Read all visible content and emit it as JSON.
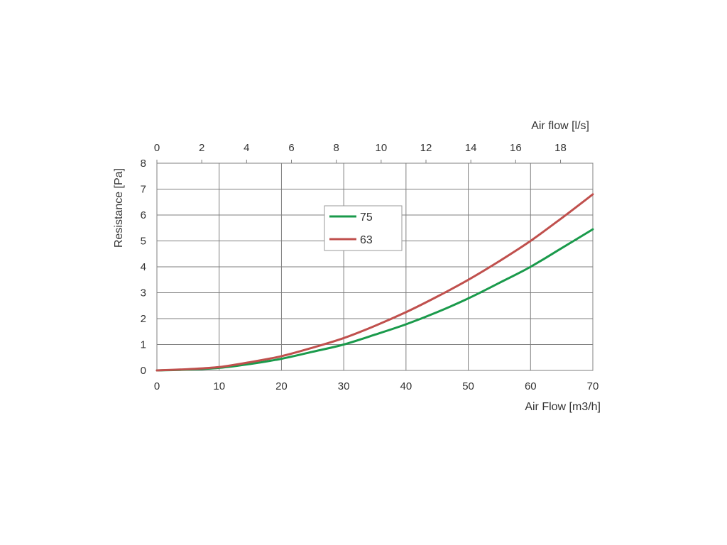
{
  "chart_data": {
    "type": "line",
    "title": "",
    "xlabel": "Air Flow [m3/h]",
    "ylabel": "Resistance [Pa]",
    "x2label": "Air flow [l/s]",
    "xlim": [
      0,
      70
    ],
    "ylim": [
      0,
      8
    ],
    "x2lim": [
      0,
      19.44
    ],
    "x_ticks": [
      "0",
      "10",
      "20",
      "30",
      "40",
      "50",
      "60",
      "70"
    ],
    "y_ticks": [
      "0",
      "1",
      "2",
      "3",
      "4",
      "5",
      "6",
      "7",
      "8"
    ],
    "x2_ticks": [
      "0",
      "2",
      "4",
      "6",
      "8",
      "10",
      "12",
      "14",
      "16",
      "18"
    ],
    "grid": true,
    "legend_position": "center-top",
    "series": [
      {
        "name": "75",
        "color": "#1a9a4b",
        "x": [
          0,
          5,
          10,
          15,
          20,
          25,
          30,
          35,
          40,
          45,
          50,
          55,
          60,
          65,
          70
        ],
        "y": [
          0,
          0.03,
          0.1,
          0.25,
          0.45,
          0.72,
          1.0,
          1.38,
          1.78,
          2.25,
          2.78,
          3.38,
          4.0,
          4.72,
          5.45
        ]
      },
      {
        "name": "63",
        "color": "#c0504d",
        "x": [
          0,
          5,
          10,
          15,
          20,
          25,
          30,
          35,
          40,
          45,
          50,
          55,
          60,
          65,
          70
        ],
        "y": [
          0,
          0.05,
          0.13,
          0.32,
          0.55,
          0.88,
          1.25,
          1.72,
          2.25,
          2.85,
          3.5,
          4.22,
          5.0,
          5.88,
          6.8
        ]
      }
    ]
  }
}
